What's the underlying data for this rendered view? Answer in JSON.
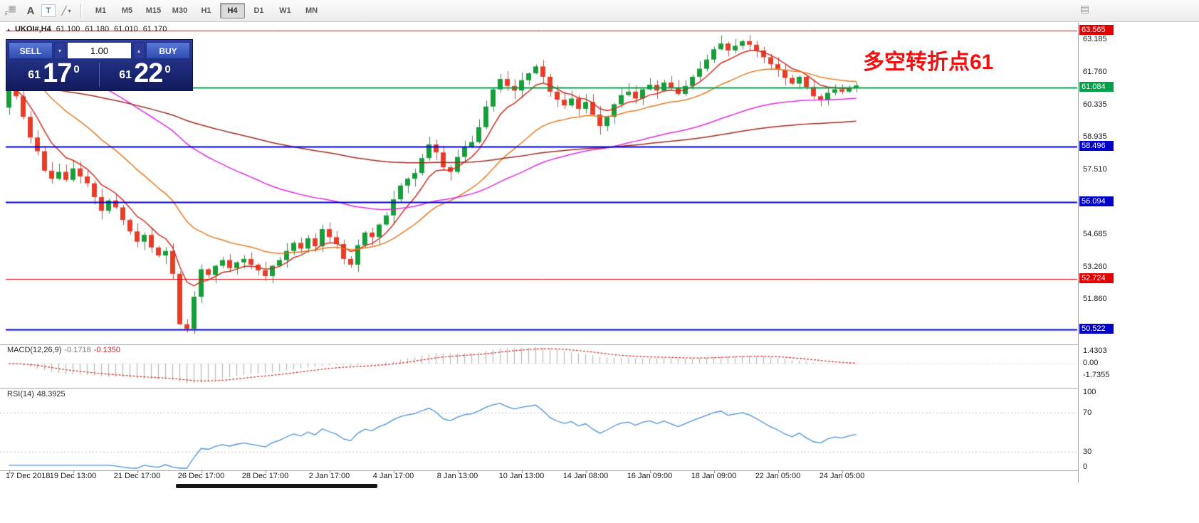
{
  "toolbar": {
    "icon_glyphs": {
      "grid": "▦",
      "flag": "F",
      "text_a": "A",
      "text_t": "T",
      "trendline": "╱",
      "caret": "▾",
      "panel": "▤"
    },
    "timeframes": [
      "M1",
      "M5",
      "M15",
      "M30",
      "H1",
      "H4",
      "D1",
      "W1",
      "MN"
    ],
    "active_timeframe": "H4"
  },
  "chart_header": {
    "toggle": "▴",
    "symbol": "UKOI#,H4",
    "open": "61.100",
    "high": "61.180",
    "low": "61.010",
    "close": "61.170"
  },
  "trade_panel": {
    "sell_label": "SELL",
    "buy_label": "BUY",
    "volume": "1.00",
    "spin_down_glyph": "▾",
    "spin_up_glyph": "▴",
    "sell_price_prefix": "61",
    "sell_price_main": "17",
    "sell_price_sup": "0",
    "buy_price_prefix": "61",
    "buy_price_main": "22",
    "buy_price_sup": "0"
  },
  "annotation": {
    "text": "多空转折点61",
    "color": "#f01010"
  },
  "chart_data": [
    {
      "type": "candlestick",
      "title": "UKOI#,H4",
      "timeframe": "H4",
      "last_ohlc": {
        "open": 61.1,
        "high": 61.18,
        "low": 61.01,
        "close": 61.17
      },
      "ylim": [
        50.0,
        63.8
      ],
      "colors": {
        "up": "#12a037",
        "down": "#ec3b24"
      },
      "open_first": 60.2,
      "closes": [
        61.35,
        60.7,
        59.8,
        58.9,
        58.3,
        57.45,
        57.1,
        57.4,
        57.05,
        57.55,
        57.2,
        56.9,
        56.3,
        55.7,
        56.15,
        55.85,
        55.3,
        54.8,
        54.35,
        54.65,
        54.1,
        53.75,
        53.95,
        52.95,
        50.75,
        50.55,
        51.95,
        53.15,
        52.9,
        53.3,
        53.55,
        53.2,
        53.45,
        53.6,
        53.35,
        53.1,
        52.85,
        53.3,
        53.55,
        53.95,
        54.3,
        54.05,
        54.5,
        54.15,
        54.9,
        54.55,
        54.25,
        53.6,
        53.35,
        54.2,
        54.75,
        54.55,
        55.1,
        55.5,
        56.2,
        56.8,
        57.1,
        57.35,
        58.0,
        58.6,
        58.25,
        57.6,
        57.4,
        58.05,
        58.5,
        58.7,
        59.35,
        60.25,
        61.0,
        61.45,
        61.15,
        60.95,
        61.4,
        61.7,
        62.0,
        61.55,
        60.9,
        60.55,
        60.3,
        60.6,
        60.15,
        60.45,
        59.9,
        59.4,
        59.8,
        60.35,
        60.75,
        60.9,
        60.6,
        61.0,
        61.2,
        60.95,
        61.3,
        61.05,
        60.8,
        61.15,
        61.55,
        61.9,
        62.3,
        62.75,
        63.0,
        62.7,
        62.9,
        63.1,
        62.95,
        62.7,
        62.4,
        62.1,
        61.85,
        61.5,
        61.25,
        61.55,
        61.1,
        60.7,
        60.55,
        60.85,
        61.0,
        60.9,
        61.05,
        61.17
      ],
      "moving_averages": [
        {
          "name": "ema-fast-red",
          "period": 7,
          "init": 61.0,
          "color": "#cf2e1f"
        },
        {
          "name": "ema-mid-orange",
          "period": 22,
          "init": 62.2,
          "color": "#e67a22"
        },
        {
          "name": "ema-slow-magenta",
          "period": 58,
          "init": 63.2,
          "color": "#dd2cdd"
        },
        {
          "name": "ema-vslow-darkred",
          "period": 150,
          "init": 61.2,
          "color": "#9c2b21"
        }
      ],
      "hlines": [
        {
          "name": "upper-red-line",
          "price": 63.565,
          "color": "#e00000",
          "width": 1
        },
        {
          "name": "pivot-green-line",
          "price": 61.084,
          "color": "#00a14a",
          "width": 2
        },
        {
          "name": "blue-level-1",
          "price": 58.496,
          "color": "#0000c8",
          "width": 2
        },
        {
          "name": "blue-level-2",
          "price": 56.094,
          "color": "#0000c8",
          "width": 2
        },
        {
          "name": "red-level",
          "price": 52.724,
          "color": "#e00000",
          "width": 1
        },
        {
          "name": "blue-level-3",
          "price": 50.522,
          "color": "#0000c8",
          "width": 2
        }
      ],
      "y_ticks": [
        63.185,
        61.76,
        60.335,
        58.935,
        57.51,
        54.685,
        53.26,
        51.86
      ],
      "x_labels": [
        {
          "i": 0,
          "label": "17 Dec 2018"
        },
        {
          "i": 9,
          "label": "19 Dec 13:00"
        },
        {
          "i": 18,
          "label": "21 Dec 17:00"
        },
        {
          "i": 27,
          "label": "26 Dec 17:00"
        },
        {
          "i": 36,
          "label": "28 Dec 17:00"
        },
        {
          "i": 45,
          "label": "2 Jan 17:00"
        },
        {
          "i": 54,
          "label": "4 Jan 17:00"
        },
        {
          "i": 63,
          "label": "8 Jan 13:00"
        },
        {
          "i": 72,
          "label": "10 Jan 13:00"
        },
        {
          "i": 81,
          "label": "14 Jan 08:00"
        },
        {
          "i": 90,
          "label": "16 Jan 09:00"
        },
        {
          "i": 99,
          "label": "18 Jan 09:00"
        },
        {
          "i": 108,
          "label": "22 Jan 05:00"
        },
        {
          "i": 117,
          "label": "24 Jan 05:00"
        }
      ]
    },
    {
      "type": "macd",
      "params": [
        12,
        26,
        9
      ],
      "label": "MACD(12,26,9)",
      "value_main": "-0.1718",
      "value_signal": "-0.1350",
      "scale_labels": [
        "1.4303",
        "0.00",
        "-1.7355"
      ],
      "ylim": [
        -1.7355,
        1.4303
      ],
      "colors": {
        "histogram": "#b8b8b8",
        "signal": "#cf2626",
        "zero": "#c0c0c0"
      }
    },
    {
      "type": "rsi",
      "period": 14,
      "label": "RSI(14)",
      "value": "48.3925",
      "levels": [
        70,
        30
      ],
      "scale_labels": [
        "100",
        "70",
        "30",
        "0"
      ],
      "ylim": [
        0,
        100
      ],
      "color": "#4a90d9"
    }
  ]
}
